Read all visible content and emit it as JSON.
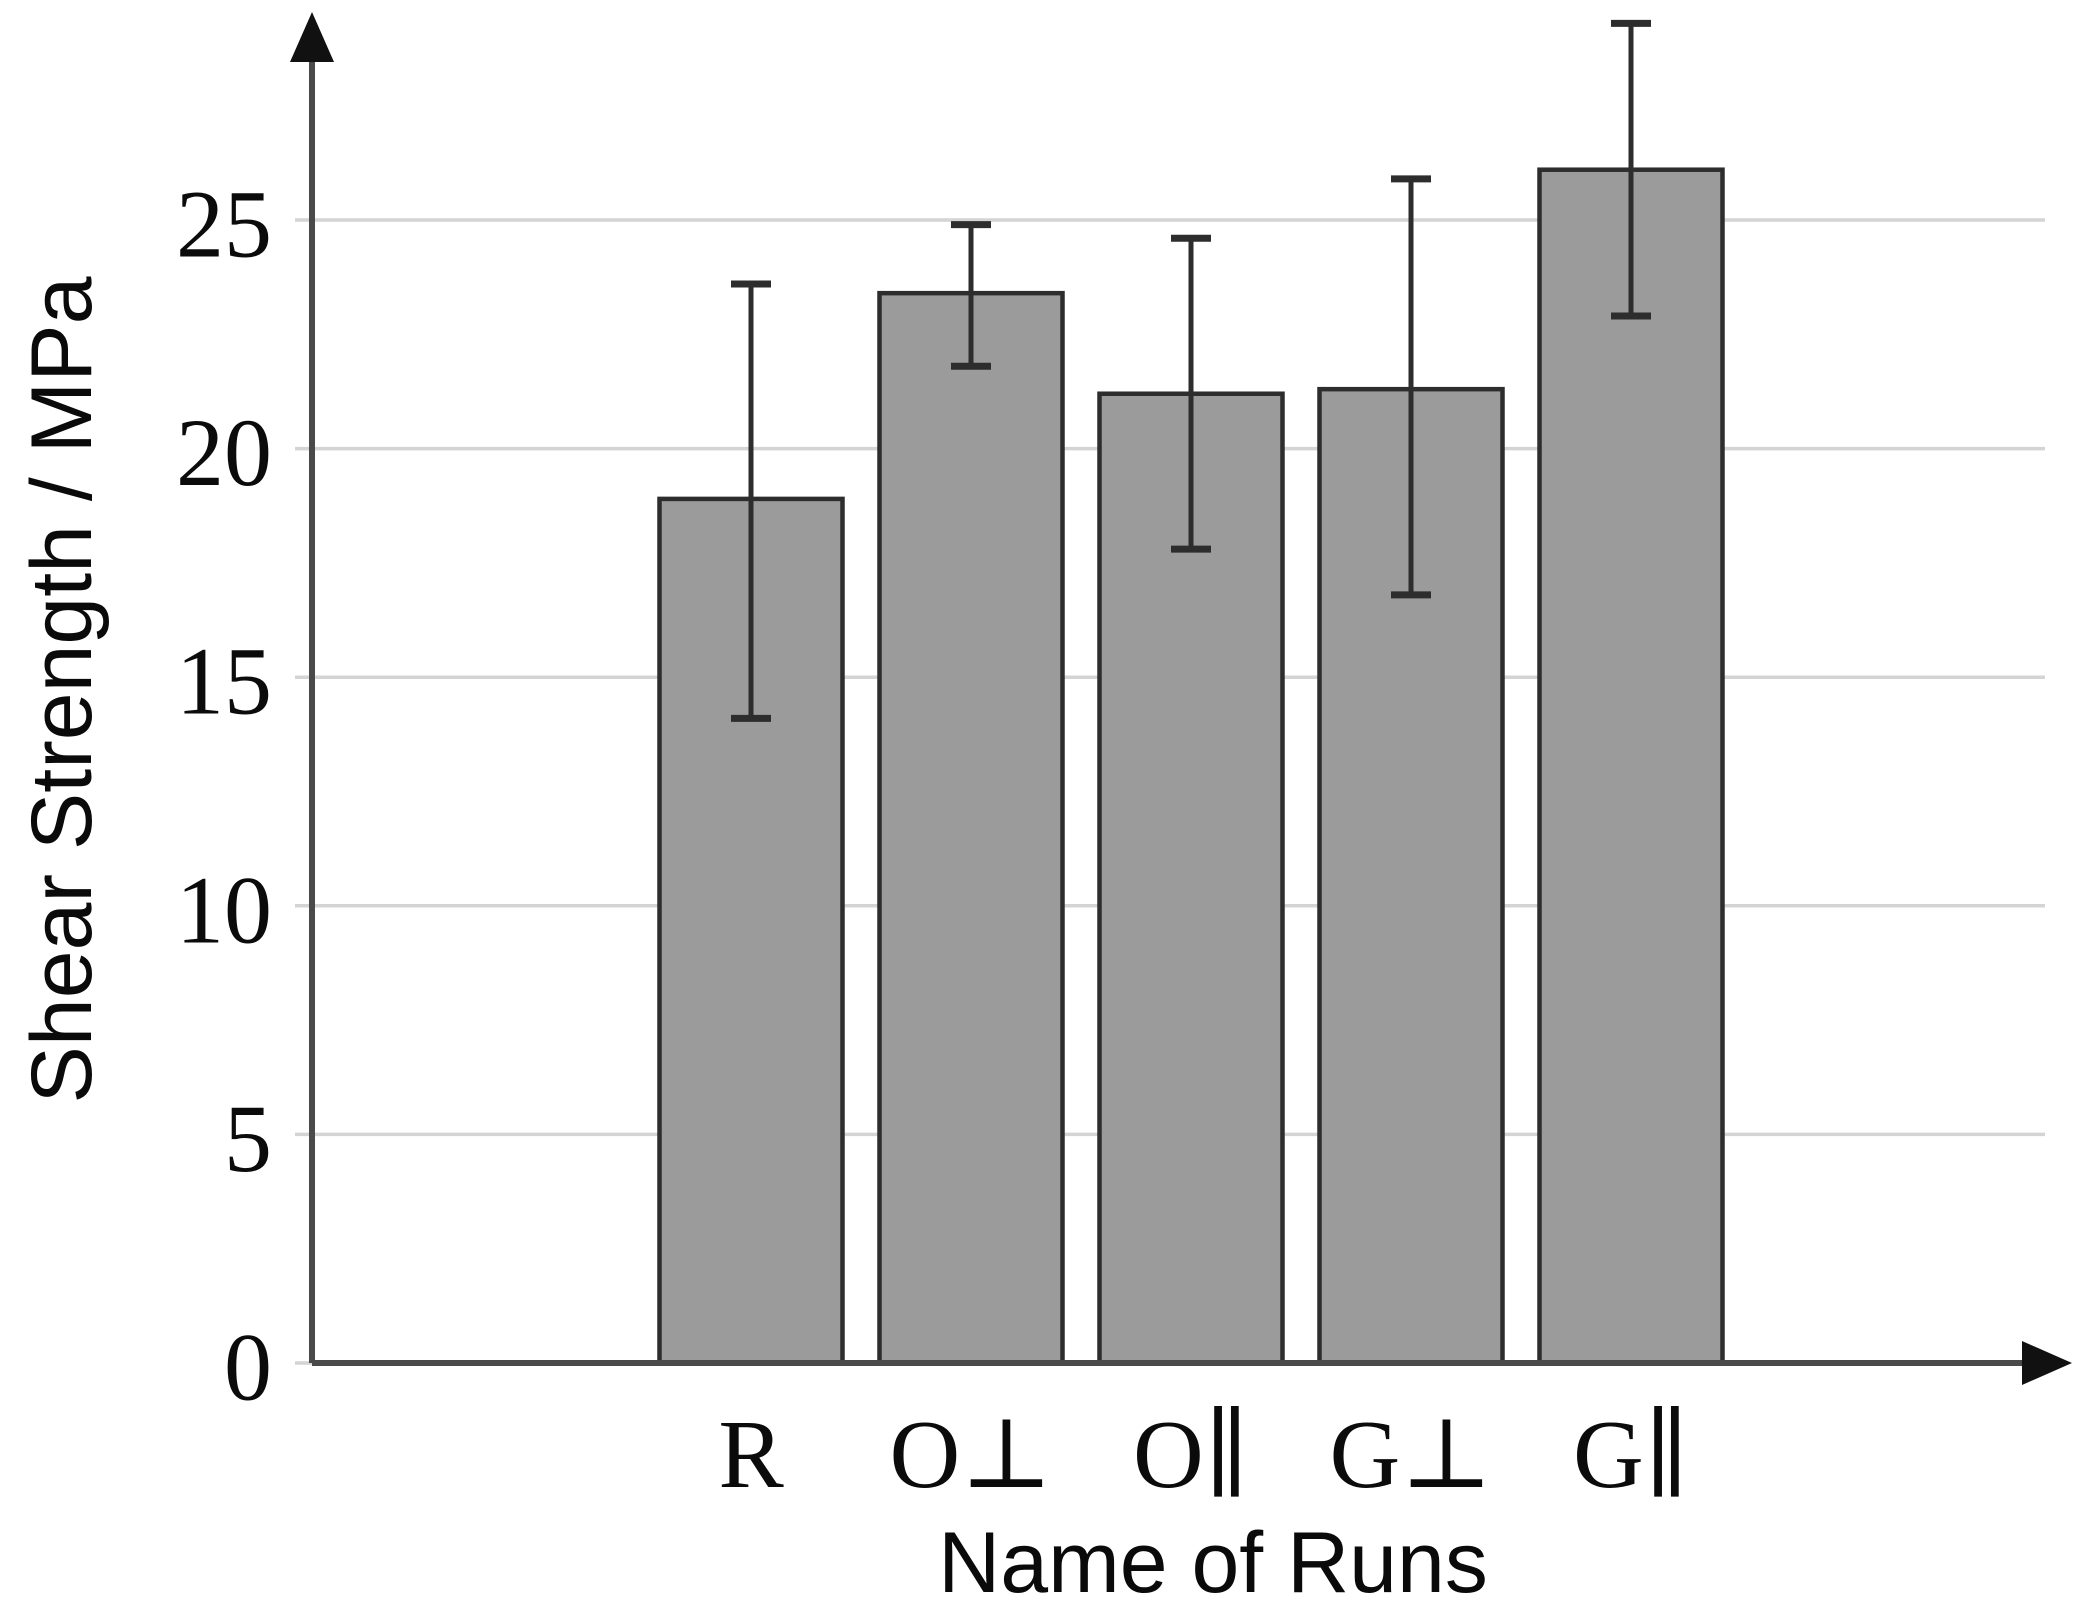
{
  "chart_data": {
    "type": "bar",
    "title": "",
    "xlabel": "Name of Runs",
    "ylabel": "Shear Strength / MPa",
    "categories": [
      "R",
      "O⊥",
      "O∥",
      "G⊥",
      "G∥"
    ],
    "values": [
      18.9,
      23.4,
      21.2,
      21.3,
      26.1
    ],
    "error_low": [
      14.1,
      21.8,
      17.8,
      16.8,
      22.9
    ],
    "error_high": [
      23.6,
      24.9,
      24.6,
      25.9,
      29.3
    ],
    "yticks": [
      0,
      5,
      10,
      15,
      20,
      25
    ],
    "ylim": [
      0,
      29.5
    ],
    "grid": true,
    "legend": false,
    "bar_color": "#9b9b9b",
    "bar_border_color": "#2d2d2d",
    "error_color": "#2d2d2d",
    "grid_color": "#d4d4d4",
    "axis_color": "#4a4a4a",
    "arrow_color": "#111111"
  }
}
